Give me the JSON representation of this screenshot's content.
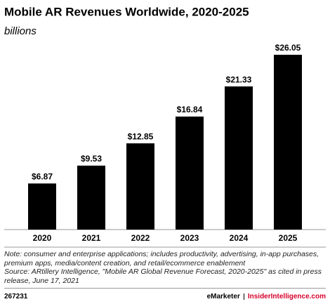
{
  "chart_data": {
    "type": "bar",
    "title": "Mobile AR Revenues Worldwide, 2020-2025",
    "subtitle": "billions",
    "categories": [
      "2020",
      "2021",
      "2022",
      "2023",
      "2024",
      "2025"
    ],
    "values": [
      6.87,
      9.53,
      12.85,
      16.84,
      21.33,
      26.05
    ],
    "value_labels": [
      "$6.87",
      "$9.53",
      "$12.85",
      "$16.84",
      "$21.33",
      "$26.05"
    ],
    "color": "#000000"
  },
  "notes": {
    "note": "Note: consumer and enterprise applications; includes productivity, advertising, in-app purchases, premium apps, media/content creation, and retail/ecommerce enablement",
    "source": "Source: ARtillery Intelligence, \"Mobile AR Global Revenue Forecast, 2020-2025\" as cited in press release, June 17, 2021"
  },
  "footer": {
    "id": "267231",
    "brand": "eMarketer",
    "site": "InsiderIntelligence.com"
  }
}
